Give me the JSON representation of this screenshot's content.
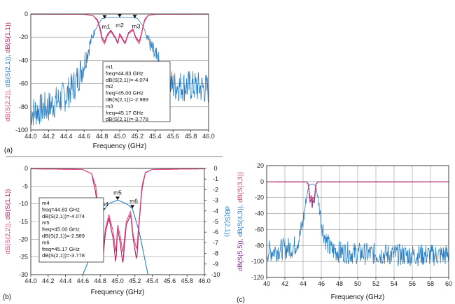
{
  "colors": {
    "s21": "#2a7fc2",
    "s11": "#b21a5c",
    "s22": "#e24a86",
    "s55": "#7a2a8c",
    "s33": "#c23a7a",
    "grid": "#9a9a9a"
  },
  "chart_data": [
    {
      "id": "a",
      "panel_label": "(a)",
      "type": "line",
      "xlabel": "Frequency (GHz)",
      "ylabel_parts": [
        {
          "text": "dB(S(2,2)), ",
          "color_key": "s22"
        },
        {
          "text": "dB(S(2,1)), ",
          "color_key": "s21"
        },
        {
          "text": "dB(S(1,1))",
          "color_key": "s11"
        }
      ],
      "xlim": [
        44.0,
        46.0
      ],
      "ylim": [
        -100,
        0
      ],
      "xticks": [
        "44.0",
        "44.2",
        "44.4",
        "44.6",
        "44.8",
        "45.0",
        "45.2",
        "45.4",
        "45.6",
        "45.8",
        "46.0"
      ],
      "yticks": [
        "0",
        "-20",
        "-40",
        "-60",
        "-80",
        "-100"
      ],
      "grid": true,
      "series": [
        {
          "color_key": "s21",
          "noisy": true,
          "x": [
            44.0,
            44.2,
            44.4,
            44.5,
            44.55,
            44.6,
            44.65,
            44.7,
            44.75,
            44.8,
            44.85,
            44.9,
            45.0,
            45.1,
            45.15,
            45.2,
            45.25,
            45.3,
            45.35,
            45.4,
            45.45,
            45.5,
            45.6,
            45.8,
            46.0
          ],
          "y": [
            -85,
            -80,
            -70,
            -60,
            -52,
            -42,
            -30,
            -18,
            -10,
            -4.1,
            -3.3,
            -3.0,
            -2.99,
            -3.1,
            -3.3,
            -3.78,
            -9,
            -17,
            -28,
            -38,
            -48,
            -55,
            -62,
            -62,
            -65
          ]
        },
        {
          "color_key": "s11",
          "noisy": false,
          "x": [
            44.0,
            44.6,
            44.7,
            44.75,
            44.78,
            44.8,
            44.83,
            44.86,
            44.9,
            44.95,
            44.98,
            45.0,
            45.03,
            45.06,
            45.1,
            45.15,
            45.18,
            45.22,
            45.25,
            45.28,
            45.32,
            45.4,
            46.0
          ],
          "y": [
            -0.1,
            -0.3,
            -1.5,
            -5,
            -12,
            -20,
            -24,
            -18,
            -14,
            -20,
            -25,
            -17,
            -21,
            -25,
            -16,
            -13,
            -20,
            -24,
            -15,
            -5,
            -1.2,
            -0.3,
            -0.1
          ]
        },
        {
          "color_key": "s22",
          "noisy": false,
          "x": [
            44.0,
            44.6,
            44.7,
            44.75,
            44.78,
            44.8,
            44.83,
            44.86,
            44.9,
            44.95,
            44.98,
            45.0,
            45.03,
            45.06,
            45.1,
            45.15,
            45.18,
            45.22,
            45.25,
            45.28,
            45.32,
            45.4,
            46.0
          ],
          "y": [
            -0.1,
            -0.3,
            -1.5,
            -6,
            -14,
            -22,
            -26,
            -19,
            -15,
            -21,
            -26,
            -18,
            -22,
            -26,
            -17,
            -14,
            -21,
            -26,
            -16,
            -6,
            -1.3,
            -0.3,
            -0.1
          ]
        }
      ],
      "markers": [
        {
          "name": "m1",
          "x": 44.83,
          "y": -4.074
        },
        {
          "name": "m2",
          "x": 45.0,
          "y": -2.989
        },
        {
          "name": "m3",
          "x": 45.17,
          "y": -3.778
        }
      ],
      "marker_box": [
        "m1",
        "freq=44.83 GHz",
        "dB(S(2,1))=-4.074",
        "m2",
        "freq=45.00 GHz",
        "dB(S(2,1))=-2.989",
        "m3",
        "freq=45.17 GHz",
        "dB(S(2,1))=-3.778"
      ]
    },
    {
      "id": "b",
      "panel_label": "(b)",
      "type": "line",
      "xlabel": "Frequency (GHz)",
      "ylabel_parts": [
        {
          "text": "dB(S(2,2)), ",
          "color_key": "s22"
        },
        {
          "text": "dB(S(1,1))",
          "color_key": "s11"
        }
      ],
      "y2label": "dB(S(2,1))",
      "xlim": [
        44.0,
        46.0
      ],
      "ylim": [
        -30,
        0
      ],
      "y2lim": [
        -10,
        0
      ],
      "xticks": [
        "44.0",
        "44.2",
        "44.4",
        "44.6",
        "44.8",
        "45.0",
        "45.2",
        "45.4",
        "45.6",
        "45.8",
        "46.0"
      ],
      "yticks": [
        "0",
        "-5",
        "-10",
        "-15",
        "-20",
        "-25",
        "-30"
      ],
      "y2ticks": [
        "0",
        "-1",
        "-2",
        "-3",
        "-4",
        "-5",
        "-6",
        "-7",
        "-8",
        "-9",
        "-10"
      ],
      "grid": true,
      "series": [
        {
          "color_key": "s21",
          "axis": "right",
          "x": [
            44.6,
            44.65,
            44.7,
            44.75,
            44.8,
            44.83,
            44.9,
            45.0,
            45.1,
            45.17,
            45.2,
            45.25,
            45.3,
            45.35
          ],
          "y": [
            -10,
            -9,
            -7.5,
            -5.8,
            -4.6,
            -4.07,
            -3.3,
            -2.99,
            -3.3,
            -3.78,
            -4.6,
            -6,
            -8,
            -10
          ]
        },
        {
          "color_key": "s11",
          "axis": "left",
          "x": [
            44.0,
            44.6,
            44.7,
            44.75,
            44.78,
            44.8,
            44.83,
            44.86,
            44.9,
            44.95,
            44.98,
            45.0,
            45.03,
            45.06,
            45.1,
            45.15,
            45.18,
            45.22,
            45.25,
            45.28,
            45.32,
            45.4,
            46.0
          ],
          "y": [
            -0.1,
            -0.3,
            -1.5,
            -7,
            -16,
            -23,
            -26,
            -18,
            -14,
            -20,
            -27,
            -17,
            -21,
            -27,
            -16,
            -13,
            -20,
            -26,
            -15,
            -6,
            -1.2,
            -0.3,
            -0.1
          ]
        },
        {
          "color_key": "s22",
          "axis": "left",
          "x": [
            44.0,
            44.6,
            44.7,
            44.75,
            44.78,
            44.8,
            44.83,
            44.86,
            44.9,
            44.95,
            44.98,
            45.0,
            45.03,
            45.06,
            45.1,
            45.15,
            45.18,
            45.22,
            45.25,
            45.28,
            45.32,
            45.4,
            46.0
          ],
          "y": [
            -0.1,
            -0.3,
            -1.5,
            -5,
            -13,
            -20,
            -23,
            -17,
            -13,
            -18,
            -24,
            -16,
            -19,
            -24,
            -15,
            -12,
            -19,
            -23,
            -14,
            -5,
            -1.1,
            -0.3,
            -0.1
          ]
        }
      ],
      "markers": [
        {
          "name": "m4",
          "x": 44.83,
          "y": -4.074
        },
        {
          "name": "m5",
          "x": 45.0,
          "y": -2.989
        },
        {
          "name": "m6",
          "x": 45.17,
          "y": -3.778
        }
      ],
      "marker_box": [
        "m4",
        "freq=44.83 GHz",
        "dB(S(2,1))=-4.074",
        "m5",
        "freq=45.00 GHz",
        "dB(S(2,1))=-2.989",
        "m6",
        "freq=45.17 GHz",
        "dB(S(2,1))=-3.778"
      ]
    },
    {
      "id": "c",
      "panel_label": "(c)",
      "type": "line",
      "xlabel": "Frequency (GHz)",
      "ylabel_parts": [
        {
          "text": "dB(S(5,5)), ",
          "color_key": "s55"
        },
        {
          "text": "dB(S(4,3)), ",
          "color_key": "s21"
        },
        {
          "text": "dB(S(3,3))",
          "color_key": "s33"
        }
      ],
      "xlim": [
        40,
        60
      ],
      "ylim": [
        -120,
        20
      ],
      "xticks": [
        "40",
        "42",
        "44",
        "46",
        "48",
        "50",
        "52",
        "54",
        "56",
        "58",
        "60"
      ],
      "yticks": [
        "20",
        "0",
        "-20",
        "-40",
        "-60",
        "-80",
        "-100",
        "-120"
      ],
      "grid": true,
      "series": [
        {
          "color_key": "s21",
          "noisy": true,
          "x": [
            40,
            41,
            42,
            43,
            43.6,
            44,
            44.3,
            44.6,
            44.8,
            45.0,
            45.2,
            45.4,
            45.7,
            46.0,
            46.4,
            47,
            48,
            50,
            55,
            60
          ],
          "y": [
            -88,
            -86,
            -84,
            -82,
            -70,
            -50,
            -25,
            -6,
            -3.5,
            -3,
            -3.5,
            -6,
            -25,
            -50,
            -70,
            -85,
            -88,
            -90,
            -92,
            -92
          ]
        },
        {
          "color_key": "s55",
          "noisy": false,
          "x": [
            40,
            44.4,
            44.6,
            44.7,
            44.8,
            44.9,
            45.0,
            45.1,
            45.2,
            45.3,
            45.4,
            45.6,
            60
          ],
          "y": [
            -0.3,
            -0.5,
            -4,
            -20,
            -28,
            -18,
            -33,
            -20,
            -30,
            -18,
            -4,
            -0.5,
            -0.3
          ]
        },
        {
          "color_key": "s33",
          "noisy": false,
          "x": [
            40,
            44.4,
            44.6,
            44.7,
            44.8,
            44.9,
            45.0,
            45.1,
            45.2,
            45.3,
            45.4,
            45.6,
            60
          ],
          "y": [
            -0.2,
            -0.4,
            -3,
            -16,
            -24,
            -14,
            -29,
            -16,
            -26,
            -14,
            -3,
            -0.4,
            -0.2
          ]
        }
      ]
    }
  ]
}
